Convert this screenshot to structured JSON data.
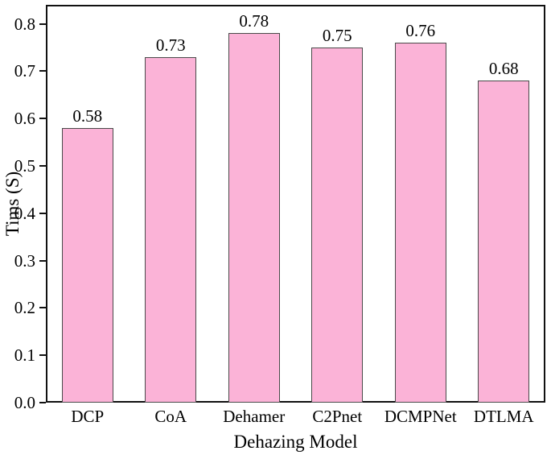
{
  "chart_data": {
    "type": "bar",
    "title": "",
    "xlabel": "Dehazing Model",
    "ylabel": "Tims (S)",
    "categories": [
      "DCP",
      "CoA",
      "Dehamer",
      "C2Pnet",
      "DCMPNet",
      "DTLMA"
    ],
    "values": [
      0.58,
      0.73,
      0.78,
      0.75,
      0.76,
      0.68
    ],
    "bar_labels": [
      "0.58",
      "0.73",
      "0.78",
      "0.75",
      "0.76",
      "0.68"
    ],
    "ylim": [
      0,
      0.84
    ],
    "yticks": [
      0,
      0.1,
      0.2,
      0.3,
      0.4,
      0.5,
      0.6,
      0.7,
      0.8
    ],
    "ytick_labels": [
      "0.0",
      "0.1",
      "0.2",
      "0.3",
      "0.4",
      "0.5",
      "0.6",
      "0.7",
      "0.8"
    ],
    "grid": false,
    "legend": false,
    "bar_fill_color": "#FBB3D7",
    "bar_edge_color": "#4a4a4a",
    "axis_color": "#111111",
    "text_color": "#000000"
  }
}
